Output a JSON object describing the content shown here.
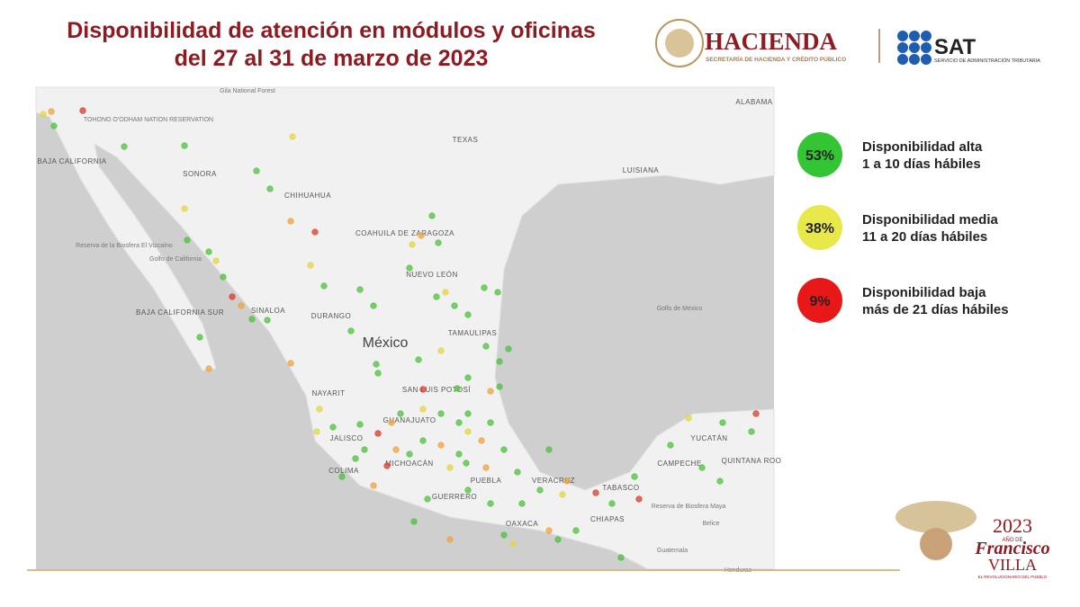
{
  "header": {
    "title_lines": [
      "Disponibilidad de atención en módulos y oficinas",
      "del 27 al 31 de marzo de 2023"
    ],
    "hacienda": {
      "name": "HACIENDA",
      "subtitle": "SECRETARÍA DE HACIENDA Y CRÉDITO PÚBLICO"
    },
    "sat": {
      "name": "SAT",
      "subtitle": "SERVICIO DE ADMINISTRACIÓN TRIBUTARIA"
    }
  },
  "map": {
    "labels": [
      "Gila National Forest",
      "TOHONO O'ODHAM NATION RESERVATION",
      "BAJA CALIFORNIA",
      "SONORA",
      "CHIHUAHUA",
      "TEXAS",
      "LUISIANA",
      "ALABAMA",
      "COAHUILA DE ZARAGOZA",
      "NUEVO LEÓN",
      "Reserva de la Biosfera El Vizcaíno",
      "Golfo de California",
      "BAJA CALIFORNIA SUR",
      "SINALOA",
      "DURANGO",
      "México",
      "TAMAULIPAS",
      "Golfo de México",
      "NAYARIT",
      "SAN LUIS POTOSÍ",
      "GUANAJUATO",
      "JALISCO",
      "COLIMA",
      "MICHOACÁN",
      "GUERRERO",
      "PUEBLA",
      "VERACRUZ",
      "OAXACA",
      "TABASCO",
      "CHIAPAS",
      "YUCATÁN",
      "CAMPECHE",
      "QUINTANA ROO",
      "Reserva de Biosfera Maya",
      "Belice",
      "Guatemala",
      "Honduras"
    ]
  },
  "legend": [
    {
      "percent": "53%",
      "lines": [
        "Disponibilidad alta",
        "1 a 10 días hábiles"
      ]
    },
    {
      "percent": "38%",
      "lines": [
        "Disponibilidad media",
        "11 a 20 días hábiles"
      ]
    },
    {
      "percent": "9%",
      "lines": [
        "Disponibilidad baja",
        "más de 21 días hábiles"
      ]
    }
  ],
  "footer": {
    "year": "2023",
    "ano_de": "AÑO DE",
    "name1": "Francisco",
    "name2": "VILLA",
    "tagline": "EL REVOLUCIONARIO DEL PUEBLO"
  }
}
